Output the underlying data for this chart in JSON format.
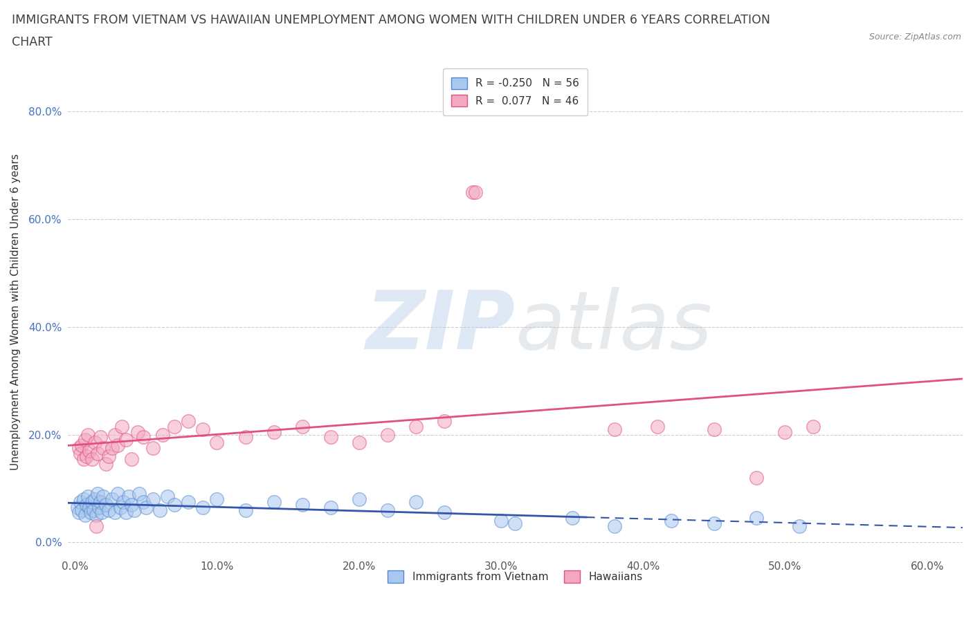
{
  "title_line1": "IMMIGRANTS FROM VIETNAM VS HAWAIIAN UNEMPLOYMENT AMONG WOMEN WITH CHILDREN UNDER 6 YEARS CORRELATION",
  "title_line2": "CHART",
  "source": "Source: ZipAtlas.com",
  "ylabel": "Unemployment Among Women with Children Under 6 years",
  "legend_label1": "Immigrants from Vietnam",
  "legend_label2": "Hawaiians",
  "R1": -0.25,
  "N1": 56,
  "R2": 0.077,
  "N2": 46,
  "color1": "#A8C8F0",
  "color2": "#F4A8C0",
  "edge_color1": "#5588CC",
  "edge_color2": "#E05080",
  "trendline_color1": "#3355AA",
  "trendline_color2": "#E05080",
  "xlim": [
    -0.005,
    0.625
  ],
  "ylim": [
    -0.025,
    0.88
  ],
  "ytick_vals": [
    0.0,
    0.2,
    0.4,
    0.6,
    0.8
  ],
  "xtick_vals": [
    0.0,
    0.1,
    0.2,
    0.3,
    0.4,
    0.5,
    0.6
  ],
  "background_color": "#ffffff",
  "grid_color": "#CCCCCC",
  "title_color": "#404040",
  "ytick_color": "#4472C4",
  "xtick_color": "#555555",
  "source_color": "#888888",
  "blue_x": [
    0.002,
    0.003,
    0.004,
    0.005,
    0.006,
    0.007,
    0.008,
    0.009,
    0.01,
    0.011,
    0.012,
    0.013,
    0.014,
    0.015,
    0.016,
    0.017,
    0.018,
    0.019,
    0.02,
    0.022,
    0.024,
    0.026,
    0.028,
    0.03,
    0.032,
    0.034,
    0.036,
    0.038,
    0.04,
    0.042,
    0.045,
    0.048,
    0.05,
    0.055,
    0.06,
    0.065,
    0.07,
    0.08,
    0.09,
    0.1,
    0.12,
    0.14,
    0.16,
    0.18,
    0.2,
    0.22,
    0.24,
    0.26,
    0.3,
    0.31,
    0.35,
    0.38,
    0.42,
    0.45,
    0.48,
    0.51
  ],
  "blue_y": [
    0.065,
    0.055,
    0.075,
    0.06,
    0.08,
    0.05,
    0.07,
    0.085,
    0.065,
    0.055,
    0.075,
    0.06,
    0.08,
    0.05,
    0.09,
    0.065,
    0.075,
    0.055,
    0.085,
    0.07,
    0.06,
    0.08,
    0.055,
    0.09,
    0.065,
    0.075,
    0.055,
    0.085,
    0.07,
    0.06,
    0.09,
    0.075,
    0.065,
    0.08,
    0.06,
    0.085,
    0.07,
    0.075,
    0.065,
    0.08,
    0.06,
    0.075,
    0.07,
    0.065,
    0.08,
    0.06,
    0.075,
    0.055,
    0.04,
    0.035,
    0.045,
    0.03,
    0.04,
    0.035,
    0.045,
    0.03
  ],
  "pink_x": [
    0.003,
    0.004,
    0.005,
    0.006,
    0.007,
    0.008,
    0.009,
    0.01,
    0.012,
    0.014,
    0.016,
    0.018,
    0.02,
    0.022,
    0.024,
    0.026,
    0.028,
    0.03,
    0.033,
    0.036,
    0.04,
    0.044,
    0.048,
    0.055,
    0.062,
    0.07,
    0.08,
    0.09,
    0.1,
    0.12,
    0.14,
    0.16,
    0.18,
    0.2,
    0.22,
    0.24,
    0.26,
    0.28,
    0.282,
    0.38,
    0.41,
    0.45,
    0.48,
    0.5,
    0.52,
    0.015
  ],
  "pink_y": [
    0.175,
    0.165,
    0.18,
    0.155,
    0.19,
    0.16,
    0.2,
    0.17,
    0.155,
    0.185,
    0.165,
    0.195,
    0.175,
    0.145,
    0.16,
    0.175,
    0.2,
    0.18,
    0.215,
    0.19,
    0.155,
    0.205,
    0.195,
    0.175,
    0.2,
    0.215,
    0.225,
    0.21,
    0.185,
    0.195,
    0.205,
    0.215,
    0.195,
    0.185,
    0.2,
    0.215,
    0.225,
    0.65,
    0.65,
    0.21,
    0.215,
    0.21,
    0.12,
    0.205,
    0.215,
    0.03
  ]
}
